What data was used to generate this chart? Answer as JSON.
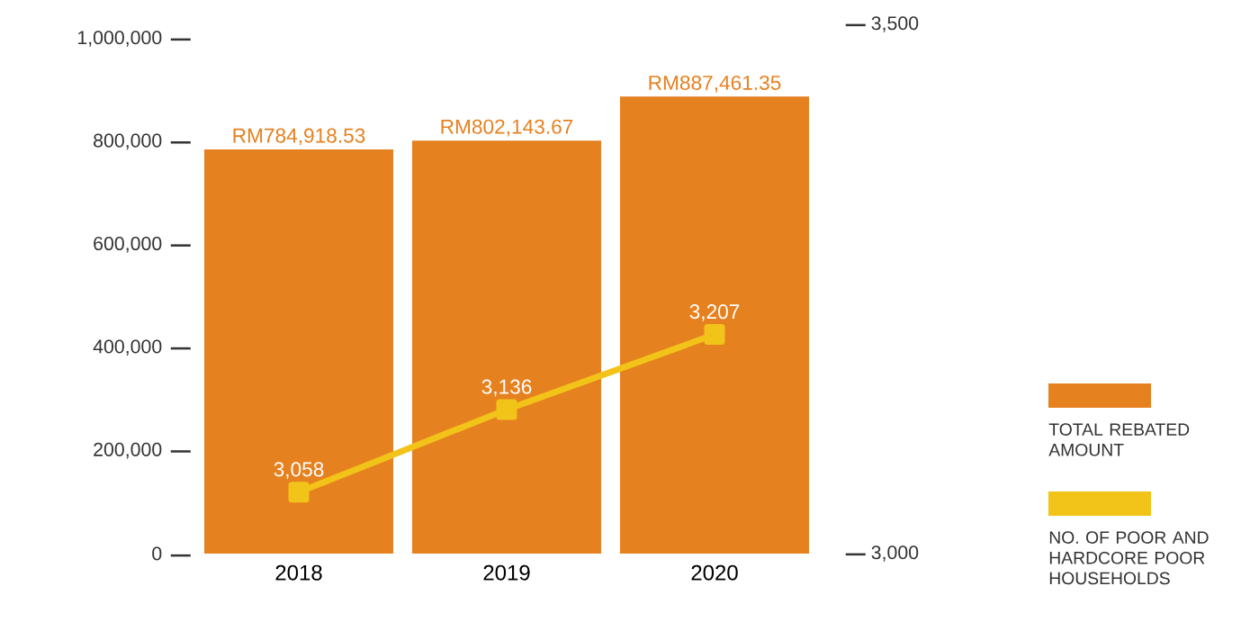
{
  "chart_data": {
    "type": "bar",
    "categories": [
      "2018",
      "2019",
      "2020"
    ],
    "series": [
      {
        "name": "TOTAL REBATED AMOUNT",
        "color": "#e6811f",
        "values": [
          784918.53,
          802143.67,
          887461.35
        ],
        "value_labels": [
          "RM784,918.53",
          "RM802,143.67",
          "RM887,461.35"
        ]
      },
      {
        "name": "NO. OF POOR AND HARDCORE POOR HOUSEHOLDS",
        "type": "line",
        "axis": "y2",
        "color": "#f2c318",
        "marker": "square",
        "values": [
          3058,
          3136,
          3207
        ],
        "value_labels": [
          "3,058",
          "3,136",
          "3,207"
        ]
      }
    ],
    "ylim": [
      0,
      1000000
    ],
    "yticks": [
      0,
      {
        "value": 200000,
        "label": "200,000"
      },
      {
        "value": 400000,
        "label": "400,000"
      },
      {
        "value": 600000,
        "label": "600,000"
      },
      {
        "value": 800000,
        "label": "800,000"
      },
      {
        "value": 1000000,
        "label": "1,000,000"
      }
    ],
    "y2lim": [
      3000,
      3500
    ],
    "y2ticks": [
      {
        "value": 3000,
        "label": "3,000"
      },
      {
        "value": 3500,
        "label": "3,500"
      }
    ],
    "legend": "right",
    "grid": false
  }
}
